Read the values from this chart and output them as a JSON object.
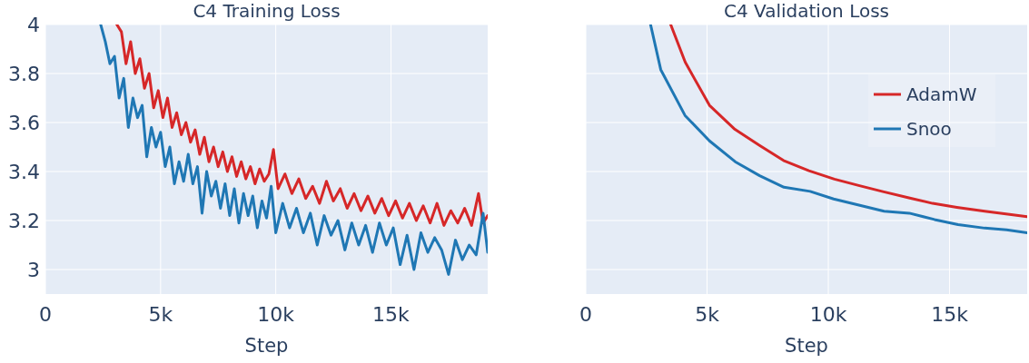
{
  "chart_data": [
    {
      "type": "line",
      "title": "C4 Training Loss",
      "xlabel": "Step",
      "xlim": [
        0,
        19200
      ],
      "ylim": [
        2.9,
        4.0
      ],
      "xticks": [
        0,
        {
          "value": 5000,
          "label": "5k"
        },
        {
          "value": 10000,
          "label": "10k"
        },
        {
          "value": 15000,
          "label": "15k"
        }
      ],
      "yticks": [
        3,
        3.2,
        3.4,
        3.6,
        3.8,
        4
      ],
      "grid": true,
      "legend": false,
      "series": [
        {
          "color": "#d62728",
          "x": [
            3100,
            3300,
            3500,
            3700,
            3900,
            4100,
            4300,
            4500,
            4700,
            4900,
            5100,
            5300,
            5500,
            5700,
            5900,
            6100,
            6300,
            6500,
            6700,
            6900,
            7100,
            7300,
            7500,
            7700,
            7900,
            8100,
            8300,
            8500,
            8700,
            8900,
            9100,
            9300,
            9500,
            9700,
            9900,
            10100,
            10400,
            10700,
            11000,
            11300,
            11600,
            11900,
            12200,
            12500,
            12800,
            13100,
            13400,
            13700,
            14000,
            14300,
            14600,
            14900,
            15200,
            15500,
            15800,
            16100,
            16400,
            16700,
            17000,
            17300,
            17600,
            17900,
            18200,
            18500,
            18800,
            19000,
            19200
          ],
          "values": [
            4.0,
            3.97,
            3.84,
            3.93,
            3.8,
            3.86,
            3.74,
            3.8,
            3.66,
            3.73,
            3.62,
            3.7,
            3.58,
            3.64,
            3.55,
            3.6,
            3.52,
            3.57,
            3.47,
            3.54,
            3.44,
            3.5,
            3.42,
            3.48,
            3.4,
            3.46,
            3.38,
            3.44,
            3.37,
            3.42,
            3.35,
            3.41,
            3.36,
            3.39,
            3.49,
            3.33,
            3.39,
            3.31,
            3.37,
            3.29,
            3.34,
            3.27,
            3.36,
            3.28,
            3.33,
            3.25,
            3.31,
            3.24,
            3.3,
            3.23,
            3.29,
            3.22,
            3.28,
            3.21,
            3.27,
            3.2,
            3.26,
            3.19,
            3.27,
            3.18,
            3.24,
            3.19,
            3.25,
            3.18,
            3.31,
            3.19,
            3.22
          ]
        },
        {
          "color": "#1f77b4",
          "x": [
            2400,
            2600,
            2800,
            3000,
            3200,
            3400,
            3600,
            3800,
            4000,
            4200,
            4400,
            4600,
            4800,
            5000,
            5200,
            5400,
            5600,
            5800,
            6000,
            6200,
            6400,
            6600,
            6800,
            7000,
            7200,
            7400,
            7600,
            7800,
            8000,
            8200,
            8400,
            8600,
            8800,
            9000,
            9200,
            9400,
            9600,
            9800,
            10000,
            10300,
            10600,
            10900,
            11200,
            11500,
            11800,
            12100,
            12400,
            12700,
            13000,
            13300,
            13600,
            13900,
            14200,
            14500,
            14800,
            15100,
            15400,
            15700,
            16000,
            16300,
            16600,
            16900,
            17200,
            17500,
            17800,
            18100,
            18400,
            18700,
            19000,
            19200
          ],
          "values": [
            4.0,
            3.93,
            3.84,
            3.87,
            3.7,
            3.78,
            3.58,
            3.7,
            3.62,
            3.67,
            3.46,
            3.58,
            3.5,
            3.56,
            3.42,
            3.5,
            3.35,
            3.44,
            3.36,
            3.47,
            3.35,
            3.42,
            3.23,
            3.4,
            3.3,
            3.36,
            3.25,
            3.35,
            3.22,
            3.33,
            3.19,
            3.31,
            3.22,
            3.3,
            3.17,
            3.28,
            3.21,
            3.34,
            3.15,
            3.27,
            3.17,
            3.25,
            3.15,
            3.23,
            3.1,
            3.22,
            3.14,
            3.2,
            3.08,
            3.19,
            3.1,
            3.18,
            3.07,
            3.19,
            3.1,
            3.17,
            3.02,
            3.14,
            3.0,
            3.15,
            3.07,
            3.13,
            3.08,
            2.98,
            3.12,
            3.04,
            3.1,
            3.06,
            3.23,
            3.07
          ]
        }
      ]
    },
    {
      "type": "line",
      "title": "C4 Validation Loss",
      "xlabel": "Step",
      "xlim": [
        0,
        18200
      ],
      "ylim": [
        2.9,
        4.0
      ],
      "xticks": [
        0,
        {
          "value": 5000,
          "label": "5k"
        },
        {
          "value": 10000,
          "label": "10k"
        },
        {
          "value": 15000,
          "label": "15k"
        }
      ],
      "yticks": [
        3,
        3.2,
        3.4,
        3.6,
        3.8,
        4
      ],
      "grid": true,
      "legend": "top right",
      "tick_labels": "x",
      "series": [
        {
          "name": "AdamW",
          "color": "#d62728",
          "x": [
            3500,
            4100,
            5100,
            6150,
            7150,
            8150,
            9200,
            10250,
            11250,
            12250,
            13400,
            14300,
            15300,
            16450,
            17400,
            18200
          ],
          "values": [
            4.0,
            3.846,
            3.67,
            3.572,
            3.507,
            3.445,
            3.403,
            3.369,
            3.343,
            3.318,
            3.291,
            3.27,
            3.254,
            3.238,
            3.226,
            3.216
          ]
        },
        {
          "name": "Snoo",
          "color": "#1f77b4",
          "x": [
            2670,
            3090,
            4090,
            5100,
            6160,
            7170,
            8170,
            9250,
            10220,
            12300,
            13340,
            14380,
            15350,
            16450,
            17350,
            18200
          ],
          "values": [
            4.0,
            3.816,
            3.629,
            3.525,
            3.44,
            3.383,
            3.336,
            3.319,
            3.288,
            3.238,
            3.23,
            3.204,
            3.183,
            3.169,
            3.162,
            3.15
          ]
        }
      ]
    }
  ]
}
